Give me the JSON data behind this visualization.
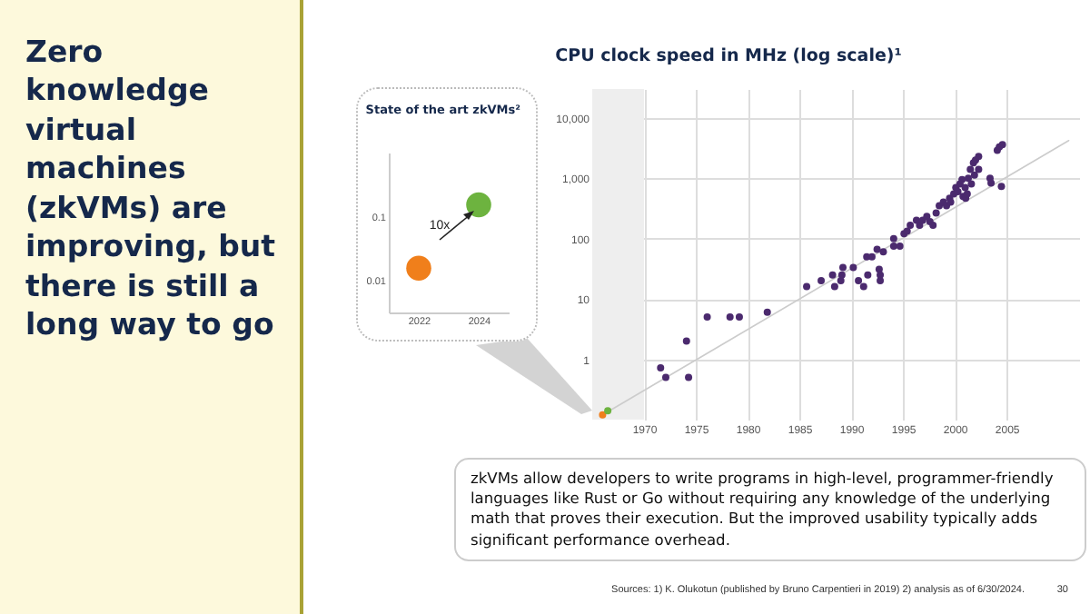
{
  "chart_data": [
    {
      "type": "scatter",
      "title": "CPU clock speed in MHz (log scale)¹",
      "x": [
        1971.6,
        1972.1,
        1974.1,
        1974.3,
        1976.1,
        1978.3,
        1979.2,
        1981.9,
        1985.7,
        1987.1,
        1988.2,
        1988.4,
        1989.0,
        1989.1,
        1989.2,
        1990.2,
        1990.7,
        1991.2,
        1991.6,
        1991.5,
        1992.0,
        1992.7,
        1992.8,
        1992.8,
        1992.5,
        1993.1,
        1994.1,
        1994.1,
        1994.7,
        1995.1,
        1995.4,
        1995.7,
        1996.3,
        1996.6,
        1996.9,
        1997.3,
        1997.6,
        1997.9,
        1998.2,
        1998.5,
        1998.9,
        1999.2,
        1999.5,
        1999.6,
        1999.9,
        2000.1,
        2000.3,
        2000.5,
        2000.7,
        2000.8,
        2001.0,
        2001.05,
        2001.2,
        2001.3,
        2001.5,
        2001.6,
        2001.8,
        2001.9,
        2002.0,
        2002.3,
        2002.3,
        2003.4,
        2003.5,
        2004.1,
        2004.3,
        2004.5,
        2004.6
      ],
      "series": [
        {
          "color": "#4b2a6e",
          "values": [
            0.72,
            0.5,
            2,
            0.5,
            5,
            5,
            5,
            6,
            16,
            20,
            25,
            16,
            20,
            25,
            33,
            33,
            20,
            16,
            25,
            50,
            50,
            31,
            25,
            20,
            66,
            60,
            100,
            75,
            75,
            120,
            133,
            166,
            200,
            166,
            200,
            233,
            190,
            166,
            266,
            350,
            400,
            350,
            466,
            400,
            550,
            700,
            600,
            800,
            950,
            500,
            700,
            466,
            550,
            1000,
            1400,
            800,
            1800,
            1130,
            2000,
            2300,
            1400,
            1000,
            830,
            2900,
            3300,
            730,
            3600
          ]
        },
        {
          "type": "line",
          "marker": "none",
          "color": "#cccccc",
          "x": [
            1966,
            2011
          ],
          "values": [
            0.12,
            4200
          ]
        },
        {
          "color": "#f07f1b",
          "x": [
            1966.0
          ],
          "values": [
            0.12
          ]
        },
        {
          "color": "#6db33f",
          "x": [
            1966.5
          ],
          "values": [
            0.14
          ]
        }
      ],
      "xlim": [
        1965,
        2012
      ],
      "xticks": [
        1970,
        1975,
        1980,
        1985,
        1990,
        1995,
        2000,
        2005
      ],
      "ylim": [
        0.1,
        30000
      ],
      "yticks": [
        1,
        10,
        100,
        {
          "value": 1000,
          "label": "1,000"
        },
        {
          "value": 10000,
          "label": "10,000"
        }
      ],
      "log": "y",
      "grid": true,
      "marker": "circle",
      "bands": [
        {
          "axis": "x",
          "from": 1965,
          "to": 1970,
          "color": "#eeeeee"
        }
      ],
      "annotations": [
        "Zero knowledge virtual machines (zkVMs) are improving, but there is still a long way to go",
        "zkVMs allow developers to write programs in high-level, programmer-friendly languages like Rust or Go without requiring any knowledge of the underlying math that proves their execution. But the improved usability typically adds significant performance overhead.",
        "Sources: 1) K. Olukotun (published by Bruno Carpentieri in 2019) 2) analysis as of 6/30/2024.",
        "30"
      ]
    },
    {
      "type": "scatter",
      "title": "State of the art zkVMs²",
      "categories": [
        "2022",
        "2024"
      ],
      "series": [
        {
          "colors": [
            "#f07f1b",
            "#6db33f"
          ],
          "values": [
            0.015,
            0.15
          ]
        }
      ],
      "ylim": [
        0.003,
        1
      ],
      "yticks": [
        0.01,
        0.1
      ],
      "log": "y",
      "marker": "circle",
      "annotations": [
        "10x"
      ]
    }
  ]
}
